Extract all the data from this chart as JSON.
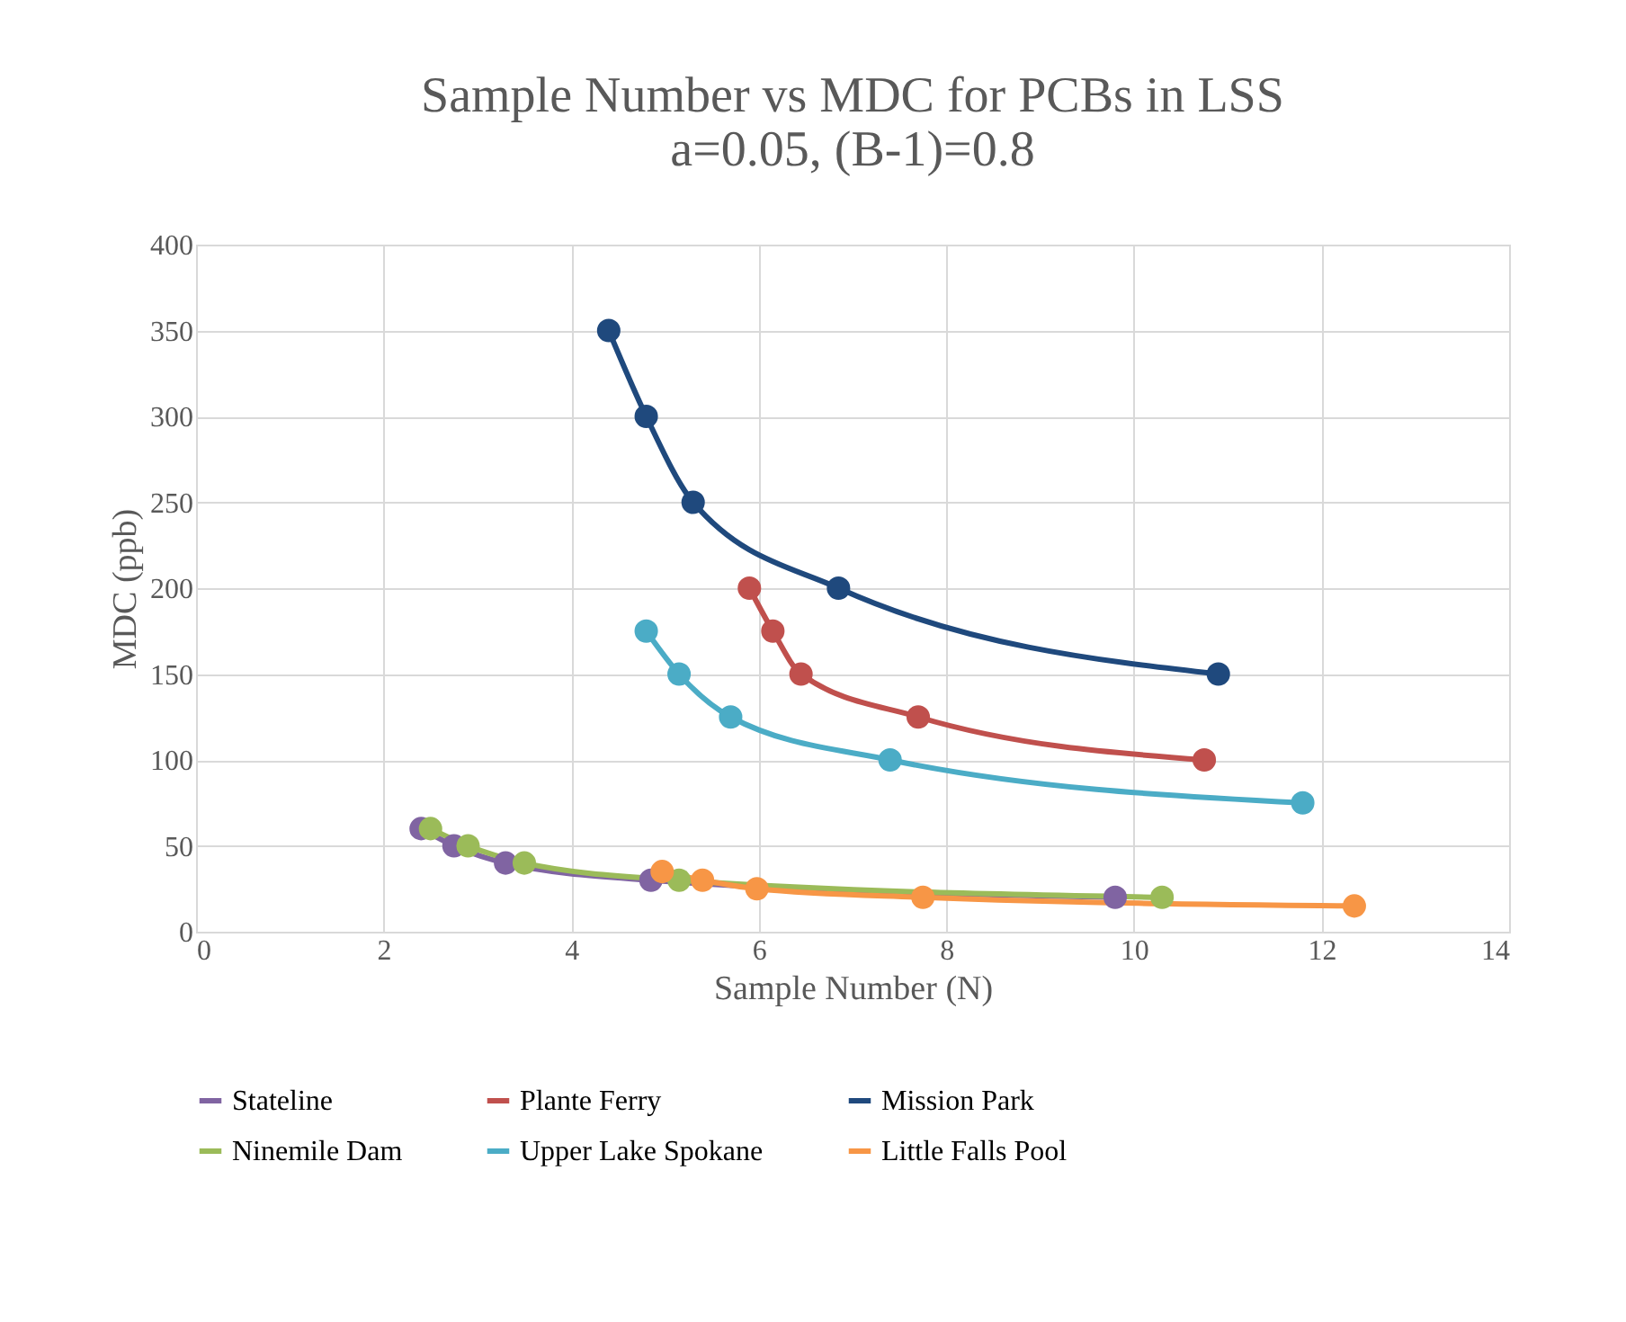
{
  "chart_data": {
    "type": "line",
    "title": [
      "Sample Number vs MDC for PCBs in LSS",
      "a=0.05, (B-1)=0.8"
    ],
    "xlabel": "Sample Number (N)",
    "ylabel": "MDC (ppb)",
    "xlim": [
      0,
      14
    ],
    "xticks": [
      0,
      2,
      4,
      6,
      8,
      10,
      12,
      14
    ],
    "ylim": [
      0,
      400
    ],
    "yticks": [
      0,
      50,
      100,
      150,
      200,
      250,
      300,
      350,
      400
    ],
    "grid": true,
    "legend": "bottom",
    "marker": "circle",
    "line_style": "solid",
    "series": [
      {
        "name": "Stateline",
        "color": "#8064a2",
        "x": [
          2.4,
          2.75,
          3.3,
          4.85,
          9.8
        ],
        "values": [
          60,
          50,
          40,
          30,
          20
        ]
      },
      {
        "name": "Plante Ferry",
        "color": "#c0504d",
        "x": [
          5.9,
          6.15,
          6.45,
          7.7,
          10.75
        ],
        "values": [
          200,
          175,
          150,
          125,
          100
        ]
      },
      {
        "name": "Mission Park",
        "color": "#1f497d",
        "x": [
          4.4,
          4.8,
          5.3,
          6.85,
          10.9
        ],
        "values": [
          350,
          300,
          250,
          200,
          150
        ]
      },
      {
        "name": "Ninemile Dam",
        "color": "#9bbb59",
        "x": [
          2.5,
          2.9,
          3.5,
          5.15,
          10.3
        ],
        "values": [
          60,
          50,
          40,
          30,
          20
        ]
      },
      {
        "name": "Upper Lake Spokane",
        "color": "#4bacc6",
        "x": [
          4.8,
          5.15,
          5.7,
          7.4,
          11.8
        ],
        "values": [
          175,
          150,
          125,
          100,
          75
        ]
      },
      {
        "name": "Little Falls Pool",
        "color": "#f79646",
        "x": [
          4.97,
          5.4,
          5.98,
          7.75,
          12.35
        ],
        "values": [
          35,
          30,
          25,
          20,
          15
        ]
      }
    ]
  }
}
